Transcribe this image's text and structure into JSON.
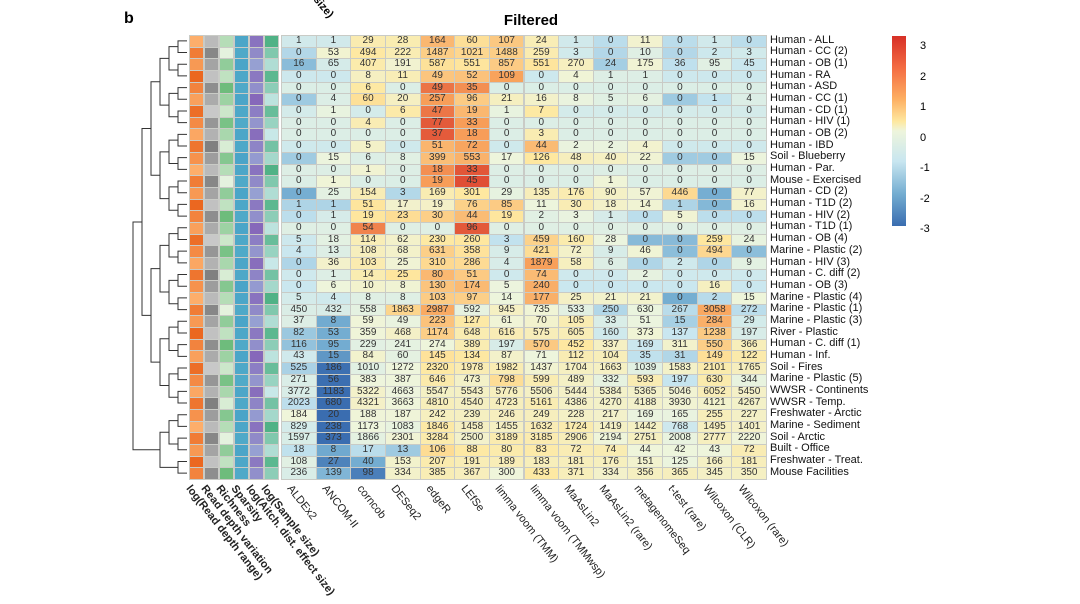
{
  "panel_label": "b",
  "cropped_label": "size)",
  "chart_data": {
    "type": "heatmap",
    "title": "Filtered",
    "columns": [
      "ALDEx2",
      "ANCOM-II",
      "corncob",
      "DESeq2",
      "edgeR",
      "LEfSe",
      "limma voom (TMM)",
      "limma voom (TMMwsp)",
      "MaAsLin2",
      "MaAsLin2 (rare)",
      "metagenomeSeq",
      "t-test (rare)",
      "Wilcoxon (CLR)",
      "Wilcoxon (rare)"
    ],
    "annotation_columns": [
      "log(Read depth range)",
      "Read depth variation",
      "Richness",
      "Sparsity",
      "log(Aitch. dist. effect size)",
      "log(Sample size)"
    ],
    "legend": {
      "ticks": [
        "3",
        "2",
        "1",
        "0",
        "-1",
        "-2",
        "-3"
      ],
      "range": [
        -3,
        3
      ],
      "colors": {
        "low": "#3a6db0",
        "mid": "#eef5dc",
        "high": "#d73027"
      }
    },
    "rows": [
      {
        "label": "Human - ALL",
        "values": [
          1,
          1,
          29,
          28,
          164,
          60,
          107,
          24,
          1,
          0,
          11,
          0,
          1,
          0
        ]
      },
      {
        "label": "Human - CC (2)",
        "values": [
          0,
          53,
          494,
          222,
          1487,
          1021,
          1488,
          259,
          3,
          0,
          10,
          0,
          2,
          3
        ]
      },
      {
        "label": "Human - OB (1)",
        "values": [
          16,
          65,
          407,
          191,
          587,
          551,
          857,
          551,
          270,
          24,
          175,
          36,
          95,
          45
        ]
      },
      {
        "label": "Human - RA",
        "values": [
          0,
          0,
          8,
          11,
          49,
          52,
          109,
          0,
          4,
          1,
          1,
          0,
          0,
          0
        ]
      },
      {
        "label": "Human - ASD",
        "values": [
          0,
          0,
          6,
          0,
          49,
          35,
          0,
          0,
          0,
          0,
          0,
          0,
          0,
          0
        ]
      },
      {
        "label": "Human - CC (1)",
        "values": [
          0,
          4,
          60,
          20,
          257,
          96,
          21,
          16,
          8,
          5,
          6,
          0,
          1,
          4
        ]
      },
      {
        "label": "Human - CD (1)",
        "values": [
          0,
          1,
          0,
          6,
          47,
          19,
          1,
          7,
          0,
          0,
          0,
          0,
          0,
          0
        ]
      },
      {
        "label": "Human - HIV (1)",
        "values": [
          0,
          0,
          4,
          0,
          77,
          33,
          0,
          0,
          0,
          0,
          0,
          0,
          0,
          0
        ]
      },
      {
        "label": "Human - OB (2)",
        "values": [
          0,
          0,
          0,
          0,
          37,
          18,
          0,
          3,
          0,
          0,
          0,
          0,
          0,
          0
        ]
      },
      {
        "label": "Human - IBD",
        "values": [
          0,
          0,
          5,
          0,
          51,
          72,
          0,
          44,
          2,
          2,
          4,
          0,
          0,
          0
        ]
      },
      {
        "label": "Soil - Blueberry",
        "values": [
          0,
          15,
          6,
          8,
          399,
          553,
          17,
          126,
          48,
          40,
          22,
          0,
          0,
          15
        ]
      },
      {
        "label": "Human - Par.",
        "values": [
          0,
          0,
          1,
          0,
          18,
          33,
          0,
          0,
          0,
          0,
          0,
          0,
          0,
          0
        ]
      },
      {
        "label": "Mouse - Exercised",
        "values": [
          0,
          1,
          0,
          0,
          19,
          45,
          0,
          0,
          0,
          1,
          0,
          0,
          0,
          0
        ]
      },
      {
        "label": "Human - CD (2)",
        "values": [
          0,
          25,
          154,
          3,
          169,
          301,
          29,
          135,
          176,
          90,
          57,
          446,
          0,
          77
        ]
      },
      {
        "label": "Human - T1D (2)",
        "values": [
          1,
          1,
          51,
          17,
          19,
          76,
          85,
          11,
          30,
          18,
          14,
          1,
          0,
          16
        ]
      },
      {
        "label": "Human - HIV (2)",
        "values": [
          0,
          1,
          19,
          23,
          30,
          44,
          19,
          2,
          3,
          1,
          0,
          5,
          0,
          0
        ]
      },
      {
        "label": "Human - T1D (1)",
        "values": [
          0,
          0,
          54,
          0,
          0,
          96,
          0,
          0,
          0,
          0,
          0,
          0,
          0,
          0
        ]
      },
      {
        "label": "Human - OB (4)",
        "values": [
          5,
          18,
          114,
          62,
          230,
          260,
          3,
          459,
          160,
          28,
          0,
          0,
          259,
          24
        ]
      },
      {
        "label": "Marine - Plastic (2)",
        "values": [
          4,
          13,
          108,
          68,
          631,
          358,
          9,
          421,
          72,
          9,
          46,
          0,
          494,
          0
        ]
      },
      {
        "label": "Human - HIV (3)",
        "values": [
          0,
          36,
          103,
          25,
          310,
          286,
          4,
          1879,
          58,
          6,
          0,
          2,
          0,
          9
        ]
      },
      {
        "label": "Human - C. diff (2)",
        "values": [
          0,
          1,
          14,
          25,
          80,
          51,
          0,
          74,
          0,
          0,
          2,
          0,
          0,
          0
        ]
      },
      {
        "label": "Human - OB (3)",
        "values": [
          0,
          6,
          10,
          8,
          130,
          174,
          5,
          240,
          0,
          0,
          0,
          0,
          16,
          0
        ]
      },
      {
        "label": "Marine - Plastic (4)",
        "values": [
          5,
          4,
          8,
          8,
          103,
          97,
          14,
          177,
          25,
          21,
          21,
          0,
          2,
          15
        ]
      },
      {
        "label": "Marine - Plastic (1)",
        "values": [
          450,
          432,
          558,
          1863,
          2987,
          592,
          945,
          735,
          533,
          250,
          630,
          267,
          3058,
          272
        ]
      },
      {
        "label": "Marine - Plastic (3)",
        "values": [
          37,
          8,
          59,
          49,
          223,
          127,
          61,
          70,
          105,
          33,
          51,
          15,
          284,
          29
        ]
      },
      {
        "label": "River - Plastic",
        "values": [
          82,
          53,
          359,
          468,
          1174,
          648,
          616,
          575,
          605,
          160,
          373,
          137,
          1238,
          197
        ]
      },
      {
        "label": "Human - C. diff (1)",
        "values": [
          116,
          95,
          229,
          241,
          274,
          389,
          197,
          570,
          452,
          337,
          169,
          311,
          550,
          366
        ]
      },
      {
        "label": "Human - Inf.",
        "values": [
          43,
          15,
          84,
          60,
          145,
          134,
          87,
          71,
          112,
          104,
          35,
          31,
          149,
          122
        ]
      },
      {
        "label": "Soil - Fires",
        "values": [
          525,
          186,
          1010,
          1272,
          2320,
          1978,
          1982,
          1437,
          1704,
          1663,
          1039,
          1583,
          2101,
          1765
        ]
      },
      {
        "label": "Marine - Plastic (5)",
        "values": [
          271,
          56,
          383,
          387,
          646,
          473,
          798,
          599,
          489,
          332,
          593,
          197,
          630,
          344
        ]
      },
      {
        "label": "WWSR - Continents",
        "values": [
          3772,
          1183,
          5322,
          4663,
          5547,
          5543,
          5776,
          5506,
          5444,
          5384,
          5365,
          5046,
          6052,
          5450
        ]
      },
      {
        "label": "WWSR - Temp.",
        "values": [
          2023,
          680,
          4321,
          3663,
          4810,
          4540,
          4723,
          5161,
          4386,
          4270,
          4188,
          3930,
          4121,
          4267
        ]
      },
      {
        "label": "Freshwater - Arctic",
        "values": [
          184,
          20,
          188,
          187,
          242,
          239,
          246,
          249,
          228,
          217,
          169,
          165,
          255,
          227
        ]
      },
      {
        "label": "Marine - Sediment",
        "values": [
          829,
          238,
          1173,
          1083,
          1846,
          1458,
          1455,
          1632,
          1724,
          1419,
          1442,
          768,
          1495,
          1401
        ]
      },
      {
        "label": "Soil - Arctic",
        "values": [
          1597,
          373,
          1866,
          2301,
          3284,
          2500,
          3189,
          3185,
          2906,
          2194,
          2751,
          2008,
          2777,
          2220
        ]
      },
      {
        "label": "Built - Office",
        "values": [
          18,
          8,
          17,
          13,
          106,
          88,
          80,
          83,
          72,
          74,
          44,
          42,
          43,
          72
        ]
      },
      {
        "label": "Freshwater - Treat.",
        "values": [
          108,
          27,
          40,
          153,
          207,
          191,
          189,
          183,
          181,
          176,
          151,
          125,
          166,
          181
        ]
      },
      {
        "label": "Mouse Facilities",
        "values": [
          236,
          139,
          98,
          334,
          385,
          367,
          300,
          433,
          371,
          334,
          356,
          365,
          345,
          350
        ]
      }
    ]
  }
}
